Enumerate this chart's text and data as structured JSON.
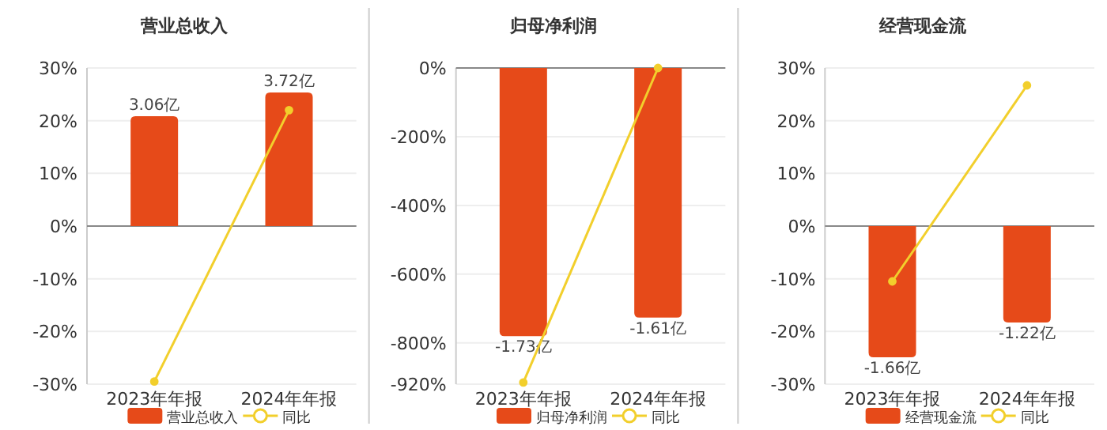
{
  "chart_data": [
    {
      "type": "bar",
      "title": "营业总收入",
      "categories": [
        "2023年年报",
        "2024年年报"
      ],
      "series": [
        {
          "name": "营业总收入",
          "color": "#e64a19",
          "values": [
            3.06,
            3.72
          ],
          "value_labels": [
            "3.06亿",
            "3.72亿"
          ],
          "axis": "y2"
        },
        {
          "name": "同比",
          "type": "line",
          "color": "#f2cf2c",
          "values": [
            -29.5,
            22
          ]
        }
      ],
      "ylim": [
        -30,
        30
      ],
      "yticks": [
        {
          "value": -30,
          "label": "-30%"
        },
        {
          "value": -20,
          "label": "-20%"
        },
        {
          "value": -10,
          "label": "-10%"
        },
        {
          "value": 0,
          "label": "0%"
        },
        {
          "value": 10,
          "label": "10%"
        },
        {
          "value": 20,
          "label": "20%"
        },
        {
          "value": 30,
          "label": "30%"
        }
      ],
      "y2lim": [
        -4.4,
        4.4
      ],
      "grid": "y",
      "legend": "bottom",
      "marker": "circle"
    },
    {
      "type": "bar",
      "title": "归母净利润",
      "categories": [
        "2023年年报",
        "2024年年报"
      ],
      "series": [
        {
          "name": "归母净利润",
          "color": "#e64a19",
          "values": [
            -1.73,
            -1.61
          ],
          "value_labels": [
            "-1.73亿",
            "-1.61亿"
          ],
          "axis": "y2"
        },
        {
          "name": "同比",
          "type": "line",
          "color": "#f2cf2c",
          "values": [
            -915,
            0
          ]
        }
      ],
      "ylim": [
        -920,
        0
      ],
      "yticks": [
        {
          "value": -920,
          "label": "-920%"
        },
        {
          "value": -800,
          "label": "-800%"
        },
        {
          "value": -600,
          "label": "-600%"
        },
        {
          "value": -400,
          "label": "-400%"
        },
        {
          "value": -200,
          "label": "-200%"
        },
        {
          "value": 0,
          "label": "0%"
        }
      ],
      "y2lim": [
        -2.04,
        0
      ],
      "grid": "y",
      "legend": "bottom",
      "marker": "circle"
    },
    {
      "type": "bar",
      "title": "经营现金流",
      "categories": [
        "2023年年报",
        "2024年年报"
      ],
      "series": [
        {
          "name": "经营现金流",
          "color": "#e64a19",
          "values": [
            -1.66,
            -1.22
          ],
          "value_labels": [
            "-1.66亿",
            "-1.22亿"
          ],
          "axis": "y2"
        },
        {
          "name": "同比",
          "type": "line",
          "color": "#f2cf2c",
          "values": [
            -10.5,
            26.7
          ]
        }
      ],
      "ylim": [
        -30,
        30
      ],
      "yticks": [
        {
          "value": -30,
          "label": "-30%"
        },
        {
          "value": -20,
          "label": "-20%"
        },
        {
          "value": -10,
          "label": "-10%"
        },
        {
          "value": 0,
          "label": "0%"
        },
        {
          "value": 10,
          "label": "10%"
        },
        {
          "value": 20,
          "label": "20%"
        },
        {
          "value": 30,
          "label": "30%"
        }
      ],
      "y2lim": [
        -2,
        2
      ],
      "grid": "y",
      "legend": "bottom",
      "marker": "circle"
    }
  ]
}
